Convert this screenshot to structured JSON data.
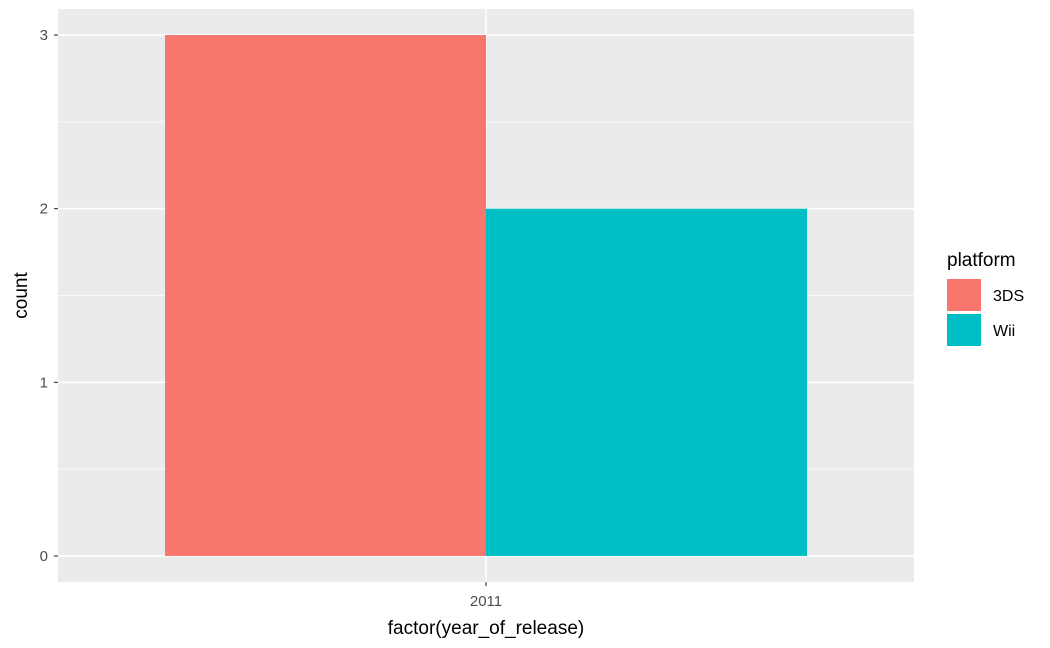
{
  "chart_data": {
    "type": "bar",
    "position": "dodge",
    "categories": [
      "2011"
    ],
    "series": [
      {
        "name": "3DS",
        "values": [
          3
        ],
        "color": "#F8766D"
      },
      {
        "name": "Wii",
        "values": [
          2
        ],
        "color": "#00BFC4"
      }
    ],
    "xlabel": "factor(year_of_release)",
    "ylabel": "count",
    "yticks": [
      0,
      1,
      2,
      3
    ],
    "ylim": [
      -0.15,
      3.15
    ],
    "grid": true,
    "legend": {
      "title": "platform",
      "placement": "right",
      "entries": [
        "3DS",
        "Wii"
      ]
    }
  },
  "colors": {
    "panel_background": "#EBEBEB",
    "grid_major": "#FFFFFF",
    "tick_text": "#4D4D4D",
    "tick_mark": "#333333"
  }
}
